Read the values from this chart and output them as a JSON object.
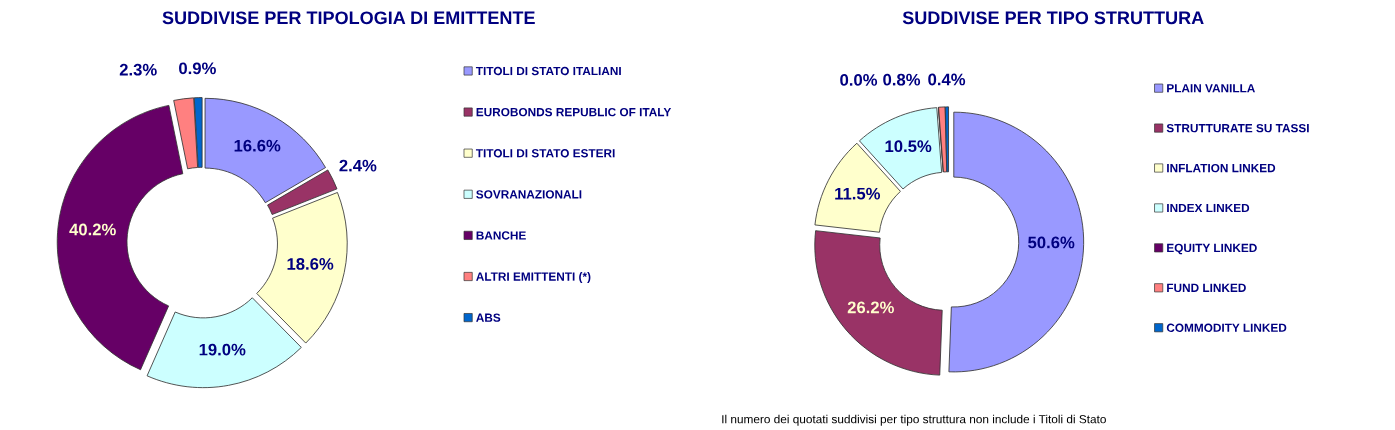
{
  "chart_data": [
    {
      "type": "donut",
      "title": "SUDDIVISE PER TIPOLOGIA DI EMITTENTE",
      "categories": [
        "TITOLI DI STATO ITALIANI",
        "EUROBONDS REPUBLIC OF ITALY",
        "TITOLI DI STATO ESTERI",
        "SOVRANAZIONALI",
        "BANCHE",
        "ALTRI EMITTENTI (*)",
        "ABS"
      ],
      "values": [
        16.6,
        2.4,
        18.6,
        19.0,
        40.2,
        2.3,
        0.9
      ],
      "value_labels": [
        "16.6%",
        "2.4%",
        "18.6%",
        "19.0%",
        "40.2%",
        "2.3%",
        "0.9%"
      ],
      "colors": [
        "#9999ff",
        "#993366",
        "#ffffcc",
        "#ccffff",
        "#660066",
        "#ff8080",
        "#0066cc"
      ],
      "legend": "right"
    },
    {
      "type": "donut",
      "title": "SUDDIVISE PER TIPO STRUTTURA",
      "categories": [
        "PLAIN VANILLA",
        "STRUTTURATE SU TASSI",
        "INFLATION LINKED",
        "INDEX LINKED",
        "EQUITY LINKED",
        "FUND LINKED",
        "COMMODITY LINKED"
      ],
      "values": [
        50.6,
        26.2,
        11.5,
        10.5,
        0.0,
        0.8,
        0.4
      ],
      "value_labels": [
        "50.6%",
        "26.2%",
        "11.5%",
        "10.5%",
        "0.0%",
        "0.8%",
        "0.4%"
      ],
      "colors": [
        "#9999ff",
        "#993366",
        "#ffffcc",
        "#ccffff",
        "#660066",
        "#ff8080",
        "#0066cc"
      ],
      "legend": "right",
      "annotations": [
        "Il numero dei quotati suddivisi per tipo struttura non include i Titoli di Stato"
      ]
    }
  ]
}
